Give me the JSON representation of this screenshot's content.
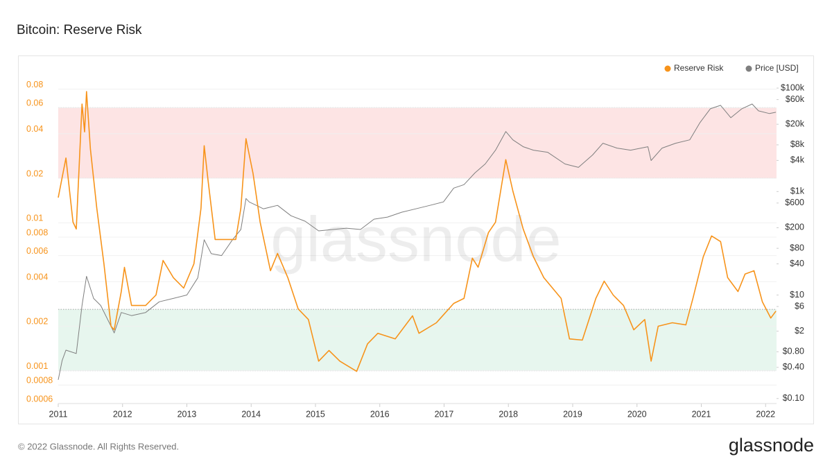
{
  "chart_data": {
    "type": "line",
    "title": "Bitcoin: Reserve Risk",
    "watermark": "glassnode",
    "footer": "© 2022 Glassnode. All Rights Reserved.",
    "logo": "glassnode",
    "log_y": true,
    "log_y2": true,
    "grid": true,
    "legend": "top-right",
    "xlim": [
      2011,
      2022.17
    ],
    "xticks": [
      2011,
      2012,
      2013,
      2014,
      2015,
      2016,
      2017,
      2018,
      2019,
      2020,
      2021,
      2022
    ],
    "ylim": [
      0.0006,
      0.1
    ],
    "yticks": [
      0.08,
      0.06,
      0.04,
      0.02,
      0.01,
      0.008,
      0.006,
      0.004,
      0.002,
      0.001,
      0.0008,
      0.0006
    ],
    "y2lim": [
      0.08,
      180000
    ],
    "y2ticks": [
      {
        "value": 100000,
        "label": "$100k"
      },
      {
        "value": 60000,
        "label": "$60k"
      },
      {
        "value": 20000,
        "label": "$20k"
      },
      {
        "value": 8000,
        "label": "$8k"
      },
      {
        "value": 4000,
        "label": "$4k"
      },
      {
        "value": 1000,
        "label": "$1k"
      },
      {
        "value": 600,
        "label": "$600"
      },
      {
        "value": 200,
        "label": "$200"
      },
      {
        "value": 80,
        "label": "$80"
      },
      {
        "value": 40,
        "label": "$40"
      },
      {
        "value": 10,
        "label": "$10"
      },
      {
        "value": 6,
        "label": "$6"
      },
      {
        "value": 2,
        "label": "$2"
      },
      {
        "value": 0.8,
        "label": "$0.80"
      },
      {
        "value": 0.4,
        "label": "$0.40"
      },
      {
        "value": 0.1,
        "label": "$0.10"
      }
    ],
    "bands": [
      {
        "from": 0.02,
        "to": 0.06,
        "color": "#fde4e4"
      },
      {
        "from": 0.001,
        "to": 0.0026,
        "color": "#e7f6ee"
      }
    ],
    "series": [
      {
        "name": "Reserve Risk",
        "color": "#f7931a",
        "x": [
          2011.0,
          2011.12,
          2011.23,
          2011.28,
          2011.37,
          2011.41,
          2011.44,
          2011.5,
          2011.6,
          2011.71,
          2011.82,
          2011.87,
          2011.98,
          2012.03,
          2012.14,
          2012.36,
          2012.52,
          2012.63,
          2012.79,
          2012.95,
          2013.11,
          2013.22,
          2013.27,
          2013.33,
          2013.44,
          2013.6,
          2013.76,
          2013.84,
          2013.92,
          2014.03,
          2014.14,
          2014.3,
          2014.41,
          2014.57,
          2014.73,
          2014.89,
          2015.05,
          2015.21,
          2015.38,
          2015.64,
          2015.81,
          2015.97,
          2016.24,
          2016.51,
          2016.61,
          2016.88,
          2017.15,
          2017.31,
          2017.44,
          2017.53,
          2017.69,
          2017.8,
          2017.96,
          2018.07,
          2018.23,
          2018.39,
          2018.55,
          2018.82,
          2018.95,
          2019.15,
          2019.36,
          2019.49,
          2019.63,
          2019.79,
          2019.95,
          2020.12,
          2020.22,
          2020.33,
          2020.55,
          2020.76,
          2020.87,
          2021.03,
          2021.16,
          2021.3,
          2021.41,
          2021.57,
          2021.68,
          2021.82,
          2021.95,
          2022.08,
          2022.16
        ],
        "values": [
          0.0148,
          0.0274,
          0.0101,
          0.00908,
          0.0635,
          0.0412,
          0.0771,
          0.0315,
          0.01255,
          0.00528,
          0.002,
          0.00189,
          0.00343,
          0.005,
          0.00276,
          0.00276,
          0.00325,
          0.00557,
          0.00426,
          0.00362,
          0.00528,
          0.01255,
          0.0332,
          0.0193,
          0.00771,
          0.00771,
          0.00771,
          0.01255,
          0.037,
          0.0215,
          0.0101,
          0.00474,
          0.00621,
          0.00426,
          0.00262,
          0.00222,
          0.00116,
          0.00137,
          0.00116,
          0.00099,
          0.00152,
          0.00179,
          0.00164,
          0.00235,
          0.00179,
          0.00211,
          0.00285,
          0.00308,
          0.00577,
          0.00501,
          0.00859,
          0.0101,
          0.0267,
          0.0164,
          0.00908,
          0.00589,
          0.00426,
          0.00308,
          0.00164,
          0.00161,
          0.00308,
          0.00403,
          0.00325,
          0.00276,
          0.00189,
          0.00222,
          0.00116,
          0.002,
          0.00211,
          0.00204,
          0.00308,
          0.00589,
          0.00815,
          0.00747,
          0.00426,
          0.00343,
          0.0045,
          0.00474,
          0.00292,
          0.00227,
          0.00253
        ]
      },
      {
        "name": "Price [USD]",
        "color": "#7f7f7f",
        "axis": "y2",
        "x": [
          2011.0,
          2011.06,
          2011.12,
          2011.28,
          2011.37,
          2011.44,
          2011.55,
          2011.66,
          2011.82,
          2011.87,
          2011.98,
          2012.14,
          2012.36,
          2012.57,
          2012.79,
          2013.0,
          2013.17,
          2013.27,
          2013.38,
          2013.54,
          2013.71,
          2013.84,
          2013.92,
          2013.97,
          2014.08,
          2014.19,
          2014.41,
          2014.62,
          2014.84,
          2015.05,
          2015.27,
          2015.48,
          2015.7,
          2015.91,
          2016.12,
          2016.34,
          2016.56,
          2016.78,
          2016.99,
          2017.15,
          2017.31,
          2017.48,
          2017.64,
          2017.8,
          2017.96,
          2018.07,
          2018.23,
          2018.39,
          2018.61,
          2018.88,
          2019.09,
          2019.31,
          2019.47,
          2019.69,
          2019.9,
          2020.17,
          2020.22,
          2020.39,
          2020.6,
          2020.82,
          2020.98,
          2021.14,
          2021.3,
          2021.46,
          2021.63,
          2021.79,
          2021.89,
          2022.06,
          2022.16
        ],
        "values": [
          0.23,
          0.54,
          0.86,
          0.74,
          6.3,
          23,
          8.6,
          6.3,
          2.5,
          1.85,
          4.6,
          4.0,
          4.6,
          7.4,
          8.6,
          10,
          21.5,
          117,
          63,
          58,
          117,
          185,
          735,
          630,
          541,
          464,
          541,
          341,
          267,
          174,
          185,
          196,
          185,
          293,
          321,
          398,
          464,
          541,
          631,
          1166,
          1360,
          2291,
          3415,
          6310,
          14454,
          10000,
          7360,
          6310,
          5754,
          3415,
          2931,
          5093,
          8577,
          6918,
          6310,
          7360,
          3981,
          6918,
          8577,
          10000,
          21544,
          39811,
          46416,
          26730,
          39811,
          49300,
          36300,
          32140,
          34140
        ]
      }
    ]
  }
}
